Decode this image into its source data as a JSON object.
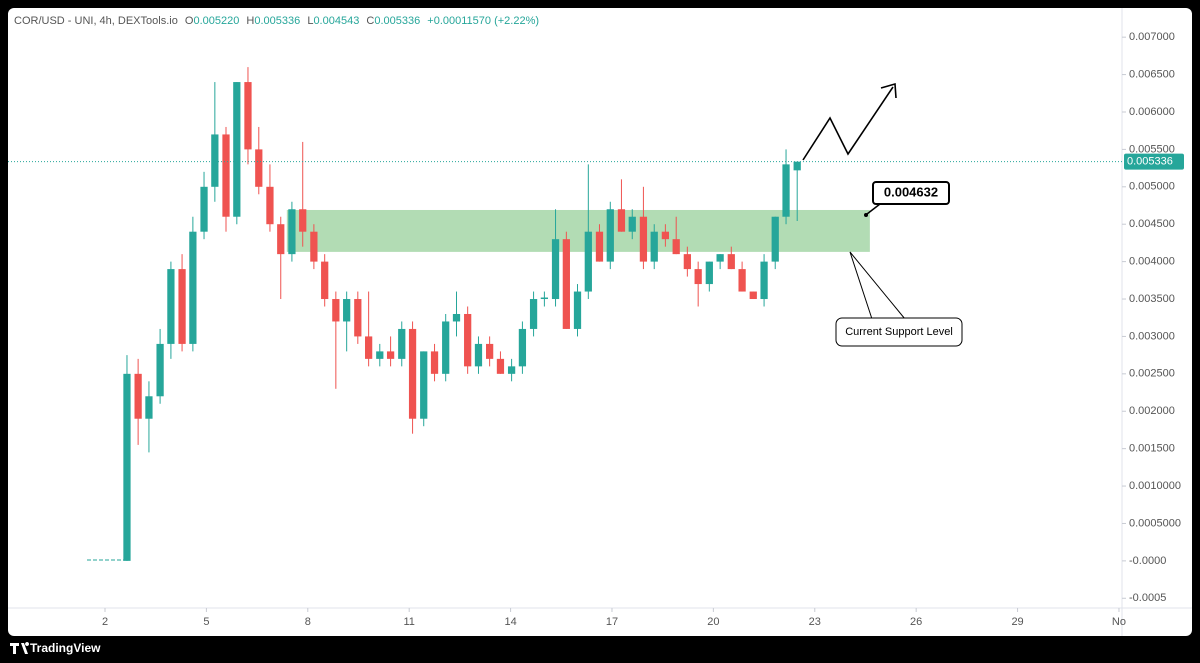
{
  "header": {
    "symbol": "COR/USD - UNI, 4h, DEXTools.io",
    "ohlc": [
      {
        "key": "O",
        "value": "0.005220"
      },
      {
        "key": "H",
        "value": "0.005336"
      },
      {
        "key": "L",
        "value": "0.004543"
      },
      {
        "key": "C",
        "value": "0.005336"
      }
    ],
    "change": "+0.00011570 (+2.22%)"
  },
  "chart_data": {
    "type": "candlestick",
    "up_color": "#26a69a",
    "down_color": "#ef5350",
    "grid": false,
    "x": [
      2.65,
      2.98,
      3.3,
      3.63,
      3.95,
      4.28,
      4.6,
      4.93,
      5.25,
      5.58,
      5.9,
      6.23,
      6.55,
      6.88,
      7.2,
      7.53,
      7.85,
      8.18,
      8.5,
      8.83,
      9.15,
      9.48,
      9.8,
      10.13,
      10.45,
      10.78,
      11.1,
      11.43,
      11.75,
      12.08,
      12.4,
      12.73,
      13.05,
      13.38,
      13.7,
      14.03,
      14.35,
      14.68,
      15.0,
      15.33,
      15.65,
      15.98,
      16.3,
      16.63,
      16.95,
      17.28,
      17.6,
      17.93,
      18.25,
      18.58,
      18.9,
      19.23,
      19.55,
      19.88,
      20.2,
      20.53,
      20.85,
      21.18,
      21.5,
      21.83,
      22.15,
      22.48
    ],
    "open": [
      0,
      0.0025,
      0.0019,
      0.0022,
      0.0029,
      0.0039,
      0.0029,
      0.0044,
      0.005,
      0.0057,
      0.0046,
      0.0064,
      0.0055,
      0.005,
      0.0045,
      0.0041,
      0.0047,
      0.0044,
      0.004,
      0.0035,
      0.0032,
      0.0035,
      0.003,
      0.0027,
      0.0028,
      0.0027,
      0.0031,
      0.0019,
      0.0028,
      0.0025,
      0.0032,
      0.0033,
      0.0026,
      0.0029,
      0.0027,
      0.0025,
      0.0026,
      0.0031,
      0.0035,
      0.0035,
      0.0043,
      0.0031,
      0.0036,
      0.0044,
      0.004,
      0.0047,
      0.0044,
      0.0046,
      0.004,
      0.0044,
      0.0043,
      0.0041,
      0.0039,
      0.0037,
      0.004,
      0.0041,
      0.0039,
      0.0036,
      0.0035,
      0.004,
      0.0046,
      0.00522
    ],
    "high": [
      0.00275,
      0.0027,
      0.0024,
      0.0031,
      0.004,
      0.0041,
      0.0046,
      0.0052,
      0.0064,
      0.0058,
      0.0064,
      0.0066,
      0.0058,
      0.0053,
      0.0046,
      0.0048,
      0.0056,
      0.0045,
      0.0041,
      0.0036,
      0.0036,
      0.0036,
      0.0036,
      0.0029,
      0.003,
      0.0032,
      0.0032,
      0.0028,
      0.0029,
      0.0033,
      0.0036,
      0.0034,
      0.003,
      0.003,
      0.0028,
      0.0027,
      0.0032,
      0.0036,
      0.0036,
      0.0047,
      0.0044,
      0.0037,
      0.0053,
      0.0045,
      0.0048,
      0.0051,
      0.0047,
      0.005,
      0.0045,
      0.0045,
      0.0046,
      0.0042,
      0.004,
      0.004,
      0.0041,
      0.0042,
      0.004,
      0.0036,
      0.0041,
      0.0046,
      0.0055,
      0.005336
    ],
    "low": [
      0,
      0.00155,
      0.00145,
      0.0021,
      0.0027,
      0.0028,
      0.0028,
      0.0043,
      0.0048,
      0.0044,
      0.0045,
      0.0053,
      0.0049,
      0.0044,
      0.0035,
      0.004,
      0.0042,
      0.0039,
      0.0034,
      0.0023,
      0.0028,
      0.0029,
      0.0026,
      0.0026,
      0.0026,
      0.0026,
      0.0017,
      0.0018,
      0.0024,
      0.0024,
      0.003,
      0.0025,
      0.0025,
      0.0026,
      0.0025,
      0.0024,
      0.0025,
      0.003,
      0.0034,
      0.0034,
      0.0031,
      0.003,
      0.0035,
      0.004,
      0.0039,
      0.0044,
      0.0043,
      0.0039,
      0.0039,
      0.0042,
      0.0041,
      0.0038,
      0.0034,
      0.0036,
      0.0039,
      0.0039,
      0.0036,
      0.0035,
      0.0034,
      0.0039,
      0.0045,
      0.004543
    ],
    "close": [
      0.0025,
      0.0019,
      0.0022,
      0.0029,
      0.0039,
      0.0029,
      0.0044,
      0.005,
      0.0057,
      0.0046,
      0.0064,
      0.0055,
      0.005,
      0.0045,
      0.0041,
      0.0047,
      0.0044,
      0.004,
      0.0035,
      0.0032,
      0.0035,
      0.003,
      0.0027,
      0.0028,
      0.0027,
      0.0031,
      0.0019,
      0.0028,
      0.0025,
      0.0032,
      0.0033,
      0.0026,
      0.0029,
      0.0027,
      0.0025,
      0.0026,
      0.0031,
      0.0035,
      0.00352,
      0.0043,
      0.0031,
      0.0036,
      0.0044,
      0.004,
      0.0047,
      0.0044,
      0.0046,
      0.004,
      0.0044,
      0.0043,
      0.0041,
      0.0039,
      0.0037,
      0.004,
      0.0041,
      0.0039,
      0.0036,
      0.0035,
      0.004,
      0.0046,
      0.0053,
      0.005336
    ],
    "xlim": [
      -0.87,
      32.09
    ],
    "xticks": [
      2,
      5,
      8,
      11,
      14,
      17,
      20,
      23,
      26,
      29,
      {
        "value": 32,
        "label": "No"
      }
    ],
    "ylim": [
      -0.00063,
      0.00739
    ],
    "yticks": [
      -0.0005,
      {
        "value": 0,
        "label": "-0.0000"
      },
      {
        "value": 0.0005,
        "label": "0.0005000"
      },
      {
        "value": 0.001,
        "label": "0.0010000"
      },
      {
        "value": 0.0015,
        "label": "0.001500"
      },
      {
        "value": 0.002,
        "label": "0.002000"
      },
      {
        "value": 0.0025,
        "label": "0.002500"
      },
      {
        "value": 0.003,
        "label": "0.003000"
      },
      {
        "value": 0.0035,
        "label": "0.003500"
      },
      {
        "value": 0.004,
        "label": "0.004000"
      },
      {
        "value": 0.0045,
        "label": "0.004500"
      },
      {
        "value": 0.005,
        "label": "0.005000"
      },
      {
        "value": 0.0055,
        "label": "0.005500"
      },
      {
        "value": 0.006,
        "label": "0.006000"
      },
      {
        "value": 0.0065,
        "label": "0.006500"
      },
      {
        "value": 0.007,
        "label": "0.007000"
      }
    ],
    "last_price": {
      "value": 0.005336,
      "label": "0.005336"
    },
    "zone": {
      "x0": 7.38,
      "x1": 24.63,
      "y0": 0.00413,
      "y1": 0.00469,
      "color": "#a5d6a7"
    },
    "annotations": {
      "level": "0.004632",
      "support": "Current Support Level"
    }
  },
  "footer": {
    "brand": "TradingView"
  }
}
